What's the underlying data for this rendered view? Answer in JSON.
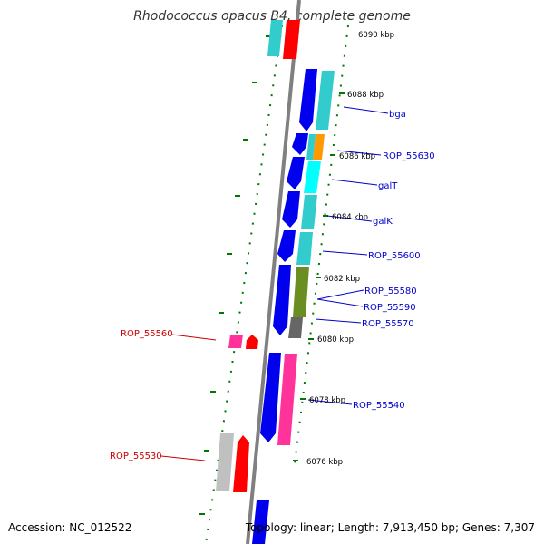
{
  "title": "Rhodococcus opacus B4, complete genome",
  "footer": {
    "accession": "Accession: NC_012522",
    "topology": "Topology: linear; Length: 7,913,450 bp; Genes: 7,307"
  },
  "kbp_labels": [
    "6090 kbp",
    "6088 kbp",
    "6086 kbp",
    "6084 kbp",
    "6082 kbp",
    "6080 kbp",
    "6078 kbp",
    "6076 kbp"
  ],
  "gene_labels": {
    "bga": "bga",
    "rop_55630": "ROP_55630",
    "galt": "galT",
    "galk": "galK",
    "rop_55600": "ROP_55600",
    "rop_55580": "ROP_55580",
    "rop_55590": "ROP_55590",
    "rop_55570": "ROP_55570",
    "rop_55560": "ROP_55560",
    "rop_55540": "ROP_55540",
    "rop_55530": "ROP_55530"
  },
  "colors": {
    "forward_label": "#0000cc",
    "reverse_label": "#cc0000",
    "tick": "#007700",
    "axis": "#808080"
  }
}
